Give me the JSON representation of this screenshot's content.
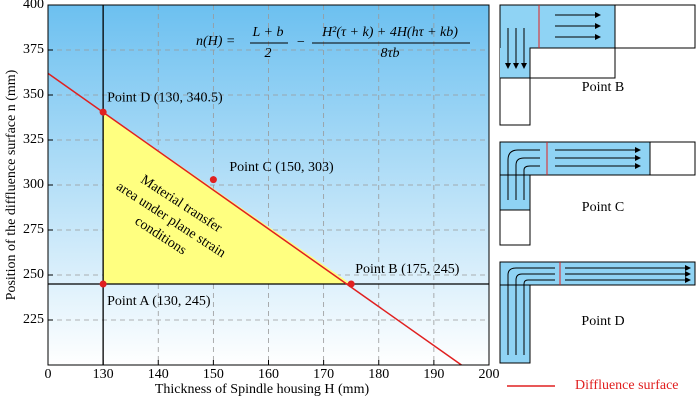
{
  "chart_data": {
    "type": "line",
    "x_label": "Thickness of Spindle housing H (mm)",
    "y_label": "Position of the diffluence surface n (mm)",
    "xlim": [
      120,
      200
    ],
    "xticks": [
      {
        "value": 120,
        "label": "0"
      },
      130,
      140,
      150,
      160,
      170,
      180,
      190,
      200
    ],
    "ylim": [
      200,
      400
    ],
    "yticks": [
      225,
      250,
      275,
      300,
      325,
      350,
      375,
      400
    ],
    "grid": true,
    "series": [
      {
        "name": "Diffluence surface",
        "color": "#e02020",
        "x": [
          120,
          195
        ],
        "values": [
          362,
          200
        ]
      }
    ],
    "reference_lines": {
      "x": 130,
      "y": 245,
      "color": "#000000"
    },
    "points": {
      "x": [
        130,
        175,
        150,
        130
      ],
      "values": [
        245,
        245,
        303,
        340.5
      ],
      "value_labels": [
        "Point A (130, 245)",
        "Point B (175, 245)",
        "Point C (150, 303)",
        "Point D (130, 340.5)"
      ],
      "color": "#e02020"
    },
    "region": {
      "label": "Material transfer area under plane strain conditions",
      "color": "#ffff80"
    },
    "formula": {
      "lhs": "n(H) =",
      "frac1_num": "L + b",
      "frac1_den": "2",
      "op": "−",
      "frac2_num": "H²(τ + k) + 4H(hτ + kb)",
      "frac2_den": "8τb"
    },
    "legend_position": "bottom-right"
  },
  "side_panels": [
    "Point B",
    "Point C",
    "Point D"
  ]
}
